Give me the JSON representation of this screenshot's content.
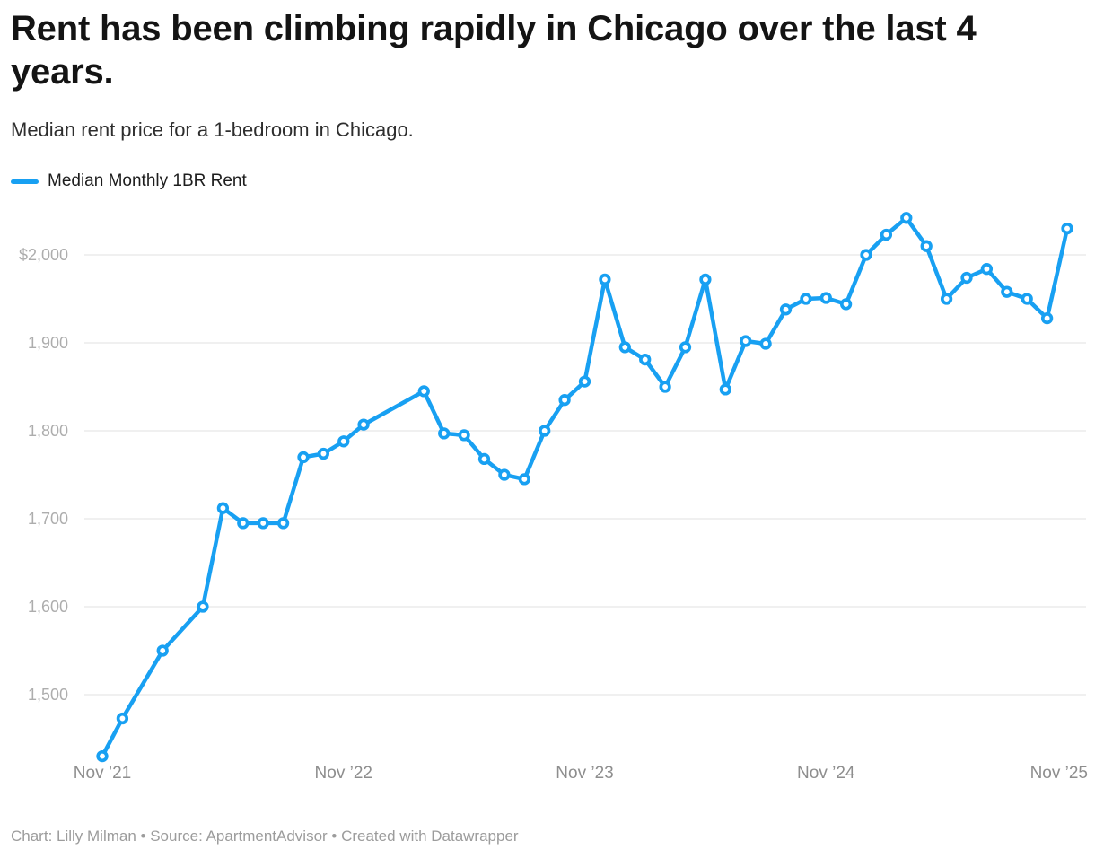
{
  "header": {
    "title": "Rent has been climbing rapidly in Chicago over the last 4 years.",
    "subtitle": "Median rent price for a 1-bedroom in Chicago."
  },
  "legend": {
    "label": "Median Monthly 1BR Rent",
    "swatch_color": "#18a0f2",
    "position": "top-left"
  },
  "footer": {
    "text": "Chart: Lilly Milman • Source: ApartmentAdvisor • Created with Datawrapper"
  },
  "colors": {
    "series_blue": "#18a0f2",
    "gridline": "#e2e2e2",
    "y_tick_label": "#adadad",
    "x_tick_label": "#8e8e8e",
    "title_text": "#141414",
    "subtitle_text": "#2e2e2e",
    "footer_text": "#9c9c9c",
    "background": "#ffffff"
  },
  "chart_data": {
    "type": "line",
    "title": "Rent has been climbing rapidly in Chicago over the last 4 years.",
    "subtitle": "Median rent price for a 1-bedroom in Chicago.",
    "xlabel": "",
    "ylabel": "",
    "grid": "horizontal-only",
    "legend_position": "top-left",
    "ylim": [
      1415,
      2055
    ],
    "x_range": [
      "Nov 2021",
      "Nov 2025"
    ],
    "y_axis": {
      "ticks": [
        {
          "label": "$2,000",
          "value": 2000
        },
        {
          "label": "1,900",
          "value": 1900
        },
        {
          "label": "1,800",
          "value": 1800
        },
        {
          "label": "1,700",
          "value": 1700
        },
        {
          "label": "1,600",
          "value": 1600
        },
        {
          "label": "1,500",
          "value": 1500
        }
      ]
    },
    "x_axis": {
      "ticks": [
        {
          "label": "Nov ’21",
          "month": 0
        },
        {
          "label": "Nov ’22",
          "month": 12
        },
        {
          "label": "Nov ’23",
          "month": 24
        },
        {
          "label": "Nov ’24",
          "month": 36
        },
        {
          "label": "Nov ’25",
          "month": 48
        }
      ]
    },
    "series": [
      {
        "name": "Median Monthly 1BR Rent",
        "color": "#18a0f2",
        "points": [
          {
            "date": "Nov 2021",
            "value": 1430
          },
          {
            "date": "Dec 2021",
            "value": 1473
          },
          {
            "date": "Feb 2022",
            "value": 1550
          },
          {
            "date": "Apr 2022",
            "value": 1600
          },
          {
            "date": "May 2022",
            "value": 1712
          },
          {
            "date": "Jun 2022",
            "value": 1695
          },
          {
            "date": "Jul 2022",
            "value": 1695
          },
          {
            "date": "Aug 2022",
            "value": 1695
          },
          {
            "date": "Sep 2022",
            "value": 1770
          },
          {
            "date": "Oct 2022",
            "value": 1774
          },
          {
            "date": "Nov 2022",
            "value": 1788
          },
          {
            "date": "Dec 2022",
            "value": 1807
          },
          {
            "date": "Mar 2023",
            "value": 1845
          },
          {
            "date": "Apr 2023",
            "value": 1797
          },
          {
            "date": "May 2023",
            "value": 1795
          },
          {
            "date": "Jun 2023",
            "value": 1768
          },
          {
            "date": "Jul 2023",
            "value": 1750
          },
          {
            "date": "Aug 2023",
            "value": 1745
          },
          {
            "date": "Sep 2023",
            "value": 1800
          },
          {
            "date": "Oct 2023",
            "value": 1835
          },
          {
            "date": "Nov 2023",
            "value": 1856
          },
          {
            "date": "Dec 2023",
            "value": 1972
          },
          {
            "date": "Jan 2024",
            "value": 1895
          },
          {
            "date": "Feb 2024",
            "value": 1881
          },
          {
            "date": "Mar 2024",
            "value": 1850
          },
          {
            "date": "Apr 2024",
            "value": 1895
          },
          {
            "date": "May 2024",
            "value": 1972
          },
          {
            "date": "Jun 2024",
            "value": 1847
          },
          {
            "date": "Jul 2024",
            "value": 1902
          },
          {
            "date": "Aug 2024",
            "value": 1899
          },
          {
            "date": "Sep 2024",
            "value": 1938
          },
          {
            "date": "Oct 2024",
            "value": 1950
          },
          {
            "date": "Nov 2024",
            "value": 1951
          },
          {
            "date": "Dec 2024",
            "value": 1944
          },
          {
            "date": "Jan 2025",
            "value": 2000
          },
          {
            "date": "Feb 2025",
            "value": 2023
          },
          {
            "date": "Mar 2025",
            "value": 2042
          },
          {
            "date": "Apr 2025",
            "value": 2010
          },
          {
            "date": "May 2025",
            "value": 1950
          },
          {
            "date": "Jun 2025",
            "value": 1974
          },
          {
            "date": "Jul 2025",
            "value": 1984
          },
          {
            "date": "Aug 2025",
            "value": 1958
          },
          {
            "date": "Sep 2025",
            "value": 1950
          },
          {
            "date": "Oct 2025",
            "value": 1928
          },
          {
            "date": "Nov 2025",
            "value": 2030
          }
        ]
      }
    ]
  }
}
